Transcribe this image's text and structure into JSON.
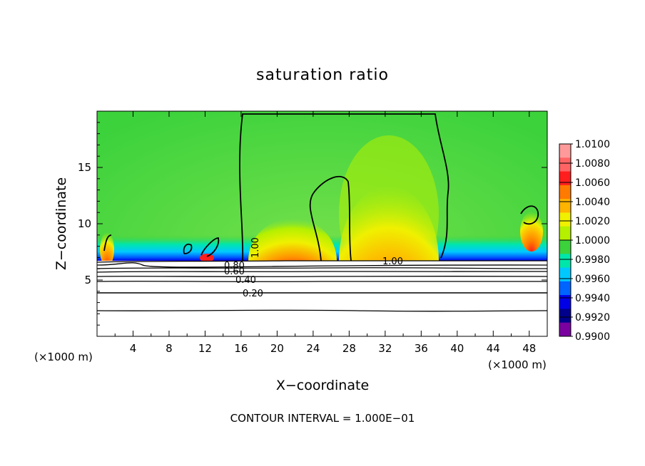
{
  "chart_data": {
    "type": "heatmap",
    "title": "saturation ratio",
    "xlabel": "X−coordinate",
    "ylabel": "Z−coordinate",
    "x_unit": "(×1000 m)",
    "y_unit": "(×1000 m)",
    "xlim": [
      0,
      50
    ],
    "ylim": [
      0,
      20
    ],
    "x_ticks": [
      4,
      8,
      12,
      16,
      20,
      24,
      28,
      32,
      36,
      40,
      44,
      48
    ],
    "y_ticks": [
      5,
      10,
      15
    ],
    "colorbar": {
      "levels": [
        "1.0100",
        "1.0080",
        "1.0060",
        "1.0040",
        "1.0020",
        "1.0000",
        "0.9980",
        "0.9960",
        "0.9940",
        "0.9920",
        "0.9900"
      ],
      "colors": [
        "#ff9a9a",
        "#ff6464",
        "#ff1e1e",
        "#ff7a00",
        "#ffb400",
        "#f0f000",
        "#b4f000",
        "#3cd23c",
        "#00e6aa",
        "#00c8ff",
        "#0064ff",
        "#0000e6",
        "#00008c",
        "#7a00a0"
      ]
    },
    "contour_labels": [
      "1.00",
      "1.00",
      "0.80",
      "0.60",
      "0.40",
      "0.20"
    ],
    "contour_interval_label": "CONTOUR INTERVAL = 1.000E−01"
  }
}
